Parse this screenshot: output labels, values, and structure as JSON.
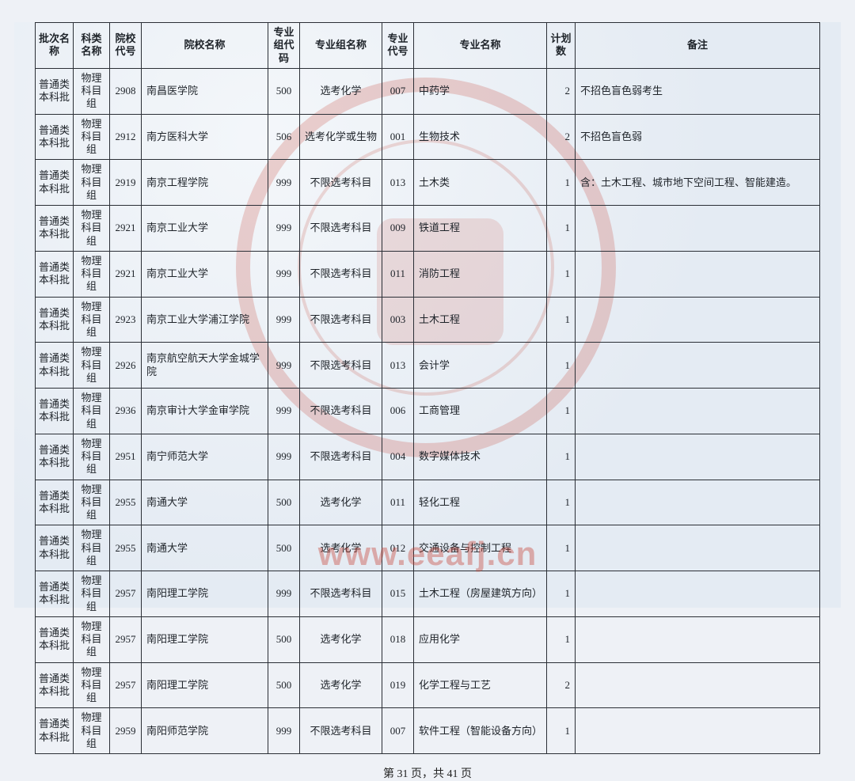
{
  "columns": [
    "批次名称",
    "科类名称",
    "院校代号",
    "院校名称",
    "专业组代码",
    "专业组名称",
    "专业代号",
    "专业名称",
    "计划数",
    "备注"
  ],
  "rows": [
    [
      "普通类本科批",
      "物理科目组",
      "2908",
      "南昌医学院",
      "500",
      "选考化学",
      "007",
      "中药学",
      "2",
      "不招色盲色弱考生"
    ],
    [
      "普通类本科批",
      "物理科目组",
      "2912",
      "南方医科大学",
      "506",
      "选考化学或生物",
      "001",
      "生物技术",
      "2",
      "不招色盲色弱"
    ],
    [
      "普通类本科批",
      "物理科目组",
      "2919",
      "南京工程学院",
      "999",
      "不限选考科目",
      "013",
      "土木类",
      "1",
      "含：土木工程、城市地下空间工程、智能建造。"
    ],
    [
      "普通类本科批",
      "物理科目组",
      "2921",
      "南京工业大学",
      "999",
      "不限选考科目",
      "009",
      "铁道工程",
      "1",
      ""
    ],
    [
      "普通类本科批",
      "物理科目组",
      "2921",
      "南京工业大学",
      "999",
      "不限选考科目",
      "011",
      "消防工程",
      "1",
      ""
    ],
    [
      "普通类本科批",
      "物理科目组",
      "2923",
      "南京工业大学浦江学院",
      "999",
      "不限选考科目",
      "003",
      "土木工程",
      "1",
      ""
    ],
    [
      "普通类本科批",
      "物理科目组",
      "2926",
      "南京航空航天大学金城学院",
      "999",
      "不限选考科目",
      "013",
      "会计学",
      "1",
      ""
    ],
    [
      "普通类本科批",
      "物理科目组",
      "2936",
      "南京审计大学金审学院",
      "999",
      "不限选考科目",
      "006",
      "工商管理",
      "1",
      ""
    ],
    [
      "普通类本科批",
      "物理科目组",
      "2951",
      "南宁师范大学",
      "999",
      "不限选考科目",
      "004",
      "数字媒体技术",
      "1",
      ""
    ],
    [
      "普通类本科批",
      "物理科目组",
      "2955",
      "南通大学",
      "500",
      "选考化学",
      "011",
      "轻化工程",
      "1",
      ""
    ],
    [
      "普通类本科批",
      "物理科目组",
      "2955",
      "南通大学",
      "500",
      "选考化学",
      "012",
      "交通设备与控制工程",
      "1",
      ""
    ],
    [
      "普通类本科批",
      "物理科目组",
      "2957",
      "南阳理工学院",
      "999",
      "不限选考科目",
      "015",
      "土木工程（房屋建筑方向）",
      "1",
      ""
    ],
    [
      "普通类本科批",
      "物理科目组",
      "2957",
      "南阳理工学院",
      "500",
      "选考化学",
      "018",
      "应用化学",
      "1",
      ""
    ],
    [
      "普通类本科批",
      "物理科目组",
      "2957",
      "南阳理工学院",
      "500",
      "选考化学",
      "019",
      "化学工程与工艺",
      "2",
      ""
    ],
    [
      "普通类本科批",
      "物理科目组",
      "2959",
      "南阳师范学院",
      "999",
      "不限选考科目",
      "007",
      "软件工程（智能设备方向）",
      "1",
      ""
    ]
  ],
  "pager": "第 31 页，共 41 页",
  "watermark": "www.eeafj.cn"
}
